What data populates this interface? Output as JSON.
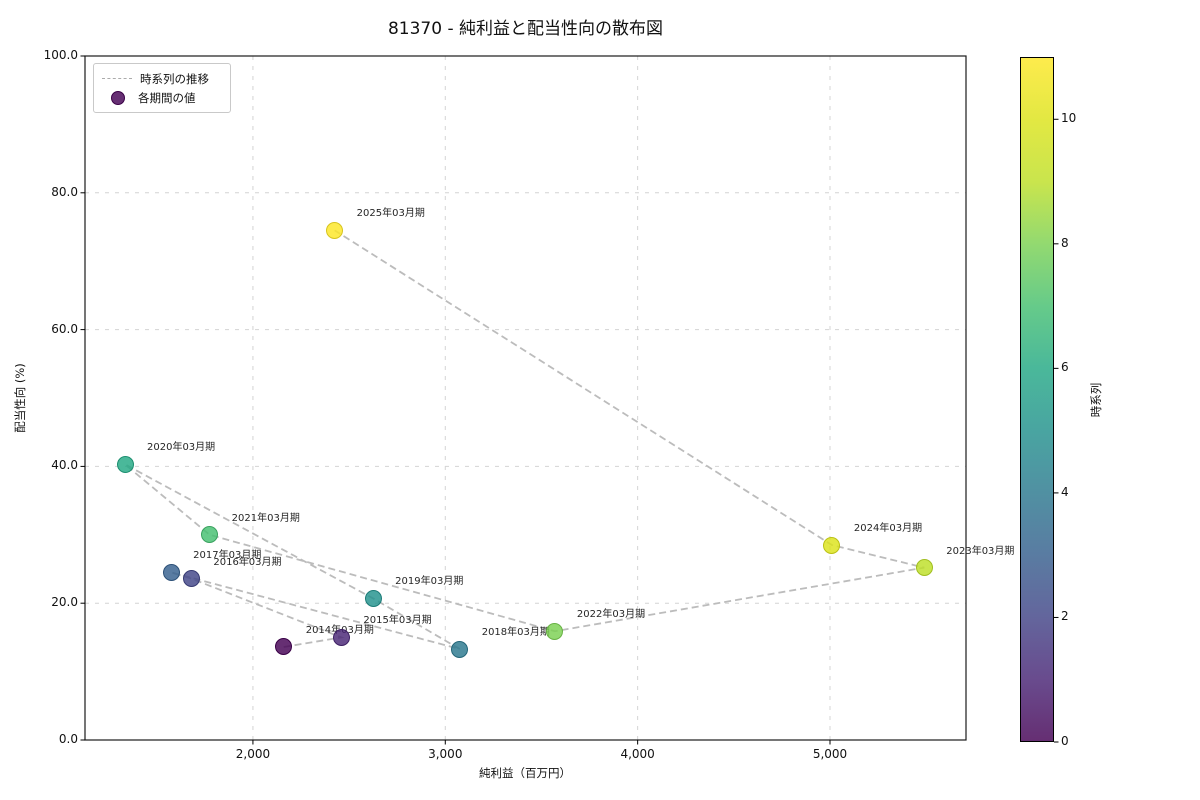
{
  "title": "81370 - 純利益と配当性向の散布図",
  "legend": {
    "line_label": "時系列の推移",
    "dot_label": "各期間の値",
    "dot_color": "#440154"
  },
  "colorbar": {
    "label": "時系列",
    "tick_values": [
      0,
      2,
      4,
      6,
      8,
      10
    ],
    "range": [
      0,
      11
    ],
    "gradient_stops": [
      "#440154",
      "#482475",
      "#414487",
      "#355f8d",
      "#2a788e",
      "#21918c",
      "#22a884",
      "#44bf70",
      "#7ad151",
      "#bddf26",
      "#dce319",
      "#fde725"
    ]
  },
  "style_hints": {
    "trail_line_color": "#bcbcbc",
    "grid_color": "#d4d4d4",
    "spine_color": "#1a1a1a",
    "point_alpha": 0.82
  },
  "chart_data": {
    "type": "scatter",
    "title": "81370 - 純利益と配当性向の散布図",
    "xlabel": "純利益（百万円）",
    "ylabel": "配当性向 (%)",
    "x_tick_labels": [
      "2,000",
      "3,000",
      "4,000",
      "5,000"
    ],
    "x_tick_values": [
      2000,
      3000,
      4000,
      5000
    ],
    "y_tick_labels": [
      "0.0",
      "20.0",
      "40.0",
      "60.0",
      "80.0",
      "100.0"
    ],
    "y_tick_values": [
      0,
      20,
      40,
      60,
      80,
      100
    ],
    "xlim": [
      1127,
      5707
    ],
    "ylim": [
      0,
      100
    ],
    "grid": "dashed",
    "legend_position": "upper left",
    "colormap": "viridis",
    "points": [
      {
        "label": "2014年03月期",
        "x": 2160,
        "y": 13.6,
        "t": 0,
        "color": "#440154"
      },
      {
        "label": "2015年03月期",
        "x": 2460,
        "y": 15.0,
        "t": 1,
        "color": "#482475"
      },
      {
        "label": "2016年03月期",
        "x": 1680,
        "y": 23.6,
        "t": 2,
        "color": "#414487"
      },
      {
        "label": "2017年03月期",
        "x": 1575,
        "y": 24.5,
        "t": 3,
        "color": "#355f8d"
      },
      {
        "label": "2018年03月期",
        "x": 3075,
        "y": 13.3,
        "t": 4,
        "color": "#2a788e"
      },
      {
        "label": "2019年03月期",
        "x": 2625,
        "y": 20.7,
        "t": 5,
        "color": "#21918c"
      },
      {
        "label": "2020年03月期",
        "x": 1335,
        "y": 40.3,
        "t": 6,
        "color": "#22a884"
      },
      {
        "label": "2021年03月期",
        "x": 1775,
        "y": 30.0,
        "t": 7,
        "color": "#44bf70"
      },
      {
        "label": "2022年03月期",
        "x": 3570,
        "y": 15.9,
        "t": 8,
        "color": "#7ad151"
      },
      {
        "label": "2023年03月期",
        "x": 5490,
        "y": 25.2,
        "t": 9,
        "color": "#bddf26"
      },
      {
        "label": "2024年03月期",
        "x": 5010,
        "y": 28.5,
        "t": 10,
        "color": "#dce319"
      },
      {
        "label": "2025年03月期",
        "x": 2425,
        "y": 74.5,
        "t": 11,
        "color": "#fde725"
      }
    ]
  }
}
